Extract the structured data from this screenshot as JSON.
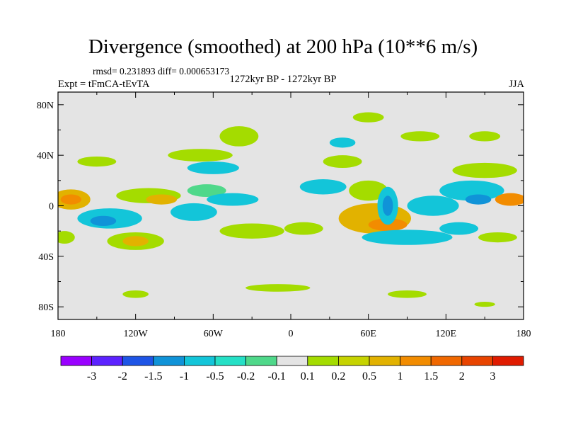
{
  "figure": {
    "title": "Divergence (smoothed) at 200 hPa (10**6 m/s)",
    "stats": "rmsd= 0.231893 diff= 0.000653173",
    "experiment": "Expt = tFmCA-tEvTA",
    "period": "1272kyr BP - 1272kyr BP",
    "season": "JJA"
  },
  "colors": {
    "background": "#ffffff",
    "plot_background": "#e4e4e4",
    "coast": "#000000"
  },
  "map": {
    "lon_ticks": [
      {
        "value": -180,
        "label": "180"
      },
      {
        "value": -120,
        "label": "120W"
      },
      {
        "value": -60,
        "label": "60W"
      },
      {
        "value": 0,
        "label": "0"
      },
      {
        "value": 60,
        "label": "60E"
      },
      {
        "value": 120,
        "label": "120E"
      },
      {
        "value": 180,
        "label": "180"
      }
    ],
    "lat_ticks": [
      {
        "value": 80,
        "label": "80N"
      },
      {
        "value": 40,
        "label": "40N"
      },
      {
        "value": 0,
        "label": "0"
      },
      {
        "value": -40,
        "label": "40S"
      },
      {
        "value": -80,
        "label": "80S"
      }
    ],
    "lon_range": [
      -180,
      180
    ],
    "lat_range": [
      -90,
      90
    ],
    "anomaly_blobs": [
      {
        "lon": -170,
        "lat": 5,
        "rlon": 15,
        "rlat": 8,
        "color": "#e2b200"
      },
      {
        "lon": -170,
        "lat": 5,
        "rlon": 8,
        "rlat": 4,
        "color": "#f28c00"
      },
      {
        "lon": -140,
        "lat": -10,
        "rlon": 25,
        "rlat": 8,
        "color": "#13c5d9"
      },
      {
        "lon": -145,
        "lat": -12,
        "rlon": 10,
        "rlat": 4,
        "color": "#1093d8"
      },
      {
        "lon": -120,
        "lat": -28,
        "rlon": 22,
        "rlat": 7,
        "color": "#a4dc00"
      },
      {
        "lon": -120,
        "lat": -28,
        "rlon": 10,
        "rlat": 4,
        "color": "#e2b200"
      },
      {
        "lon": -175,
        "lat": -25,
        "rlon": 8,
        "rlat": 5,
        "color": "#a4dc00"
      },
      {
        "lon": -110,
        "lat": 8,
        "rlon": 25,
        "rlat": 6,
        "color": "#a4dc00"
      },
      {
        "lon": -100,
        "lat": 5,
        "rlon": 12,
        "rlat": 4,
        "color": "#e2b200"
      },
      {
        "lon": -75,
        "lat": -5,
        "rlon": 18,
        "rlat": 7,
        "color": "#13c5d9"
      },
      {
        "lon": -65,
        "lat": 12,
        "rlon": 15,
        "rlat": 5,
        "color": "#4fd88a"
      },
      {
        "lon": -45,
        "lat": 5,
        "rlon": 20,
        "rlat": 5,
        "color": "#13c5d9"
      },
      {
        "lon": -70,
        "lat": 40,
        "rlon": 25,
        "rlat": 5,
        "color": "#a4dc00"
      },
      {
        "lon": -40,
        "lat": 55,
        "rlon": 15,
        "rlat": 8,
        "color": "#a4dc00"
      },
      {
        "lon": -60,
        "lat": 30,
        "rlon": 20,
        "rlat": 5,
        "color": "#13c5d9"
      },
      {
        "lon": -150,
        "lat": 35,
        "rlon": 15,
        "rlat": 4,
        "color": "#a4dc00"
      },
      {
        "lon": -30,
        "lat": -20,
        "rlon": 25,
        "rlat": 6,
        "color": "#a4dc00"
      },
      {
        "lon": 10,
        "lat": -18,
        "rlon": 15,
        "rlat": 5,
        "color": "#a4dc00"
      },
      {
        "lon": 25,
        "lat": 15,
        "rlon": 18,
        "rlat": 6,
        "color": "#13c5d9"
      },
      {
        "lon": 40,
        "lat": 35,
        "rlon": 15,
        "rlat": 5,
        "color": "#a4dc00"
      },
      {
        "lon": 60,
        "lat": 12,
        "rlon": 15,
        "rlat": 8,
        "color": "#a4dc00"
      },
      {
        "lon": 65,
        "lat": -10,
        "rlon": 28,
        "rlat": 12,
        "color": "#e2b200"
      },
      {
        "lon": 75,
        "lat": -15,
        "rlon": 15,
        "rlat": 5,
        "color": "#f28c00"
      },
      {
        "lon": 75,
        "lat": 0,
        "rlon": 8,
        "rlat": 15,
        "color": "#13c5d9"
      },
      {
        "lon": 75,
        "lat": 0,
        "rlon": 4,
        "rlat": 8,
        "color": "#1093d8"
      },
      {
        "lon": 90,
        "lat": -25,
        "rlon": 35,
        "rlat": 6,
        "color": "#13c5d9"
      },
      {
        "lon": 110,
        "lat": 0,
        "rlon": 20,
        "rlat": 8,
        "color": "#13c5d9"
      },
      {
        "lon": 140,
        "lat": 12,
        "rlon": 25,
        "rlat": 8,
        "color": "#13c5d9"
      },
      {
        "lon": 145,
        "lat": 5,
        "rlon": 10,
        "rlat": 4,
        "color": "#1093d8"
      },
      {
        "lon": 150,
        "lat": 28,
        "rlon": 25,
        "rlat": 6,
        "color": "#a4dc00"
      },
      {
        "lon": 170,
        "lat": 5,
        "rlon": 12,
        "rlat": 5,
        "color": "#f28c00"
      },
      {
        "lon": 130,
        "lat": -18,
        "rlon": 15,
        "rlat": 5,
        "color": "#13c5d9"
      },
      {
        "lon": 160,
        "lat": -25,
        "rlon": 15,
        "rlat": 4,
        "color": "#a4dc00"
      },
      {
        "lon": 100,
        "lat": 55,
        "rlon": 15,
        "rlat": 4,
        "color": "#a4dc00"
      },
      {
        "lon": 150,
        "lat": 55,
        "rlon": 12,
        "rlat": 4,
        "color": "#a4dc00"
      },
      {
        "lon": 60,
        "lat": 70,
        "rlon": 12,
        "rlat": 4,
        "color": "#a4dc00"
      },
      {
        "lon": 40,
        "lat": 50,
        "rlon": 10,
        "rlat": 4,
        "color": "#13c5d9"
      },
      {
        "lon": -10,
        "lat": -65,
        "rlon": 25,
        "rlat": 3,
        "color": "#a4dc00"
      },
      {
        "lon": 90,
        "lat": -70,
        "rlon": 15,
        "rlat": 3,
        "color": "#a4dc00"
      },
      {
        "lon": -120,
        "lat": -70,
        "rlon": 10,
        "rlat": 3,
        "color": "#a4dc00"
      },
      {
        "lon": 150,
        "lat": -78,
        "rlon": 8,
        "rlat": 2,
        "color": "#a4dc00"
      }
    ]
  },
  "colorbar": {
    "colors": [
      "#9900ff",
      "#5c22ff",
      "#1e55e6",
      "#1093d8",
      "#13c5d9",
      "#25e0c6",
      "#4fd88a",
      "#e4e4e4",
      "#a4dc00",
      "#c6d300",
      "#e2b200",
      "#f28c00",
      "#f06800",
      "#e84400",
      "#e01b00"
    ],
    "labels": [
      "-3",
      "-2",
      "-1.5",
      "-1",
      "-0.5",
      "-0.2",
      "-0.1",
      "0.1",
      "0.2",
      "0.5",
      "1",
      "1.5",
      "2",
      "3"
    ]
  }
}
